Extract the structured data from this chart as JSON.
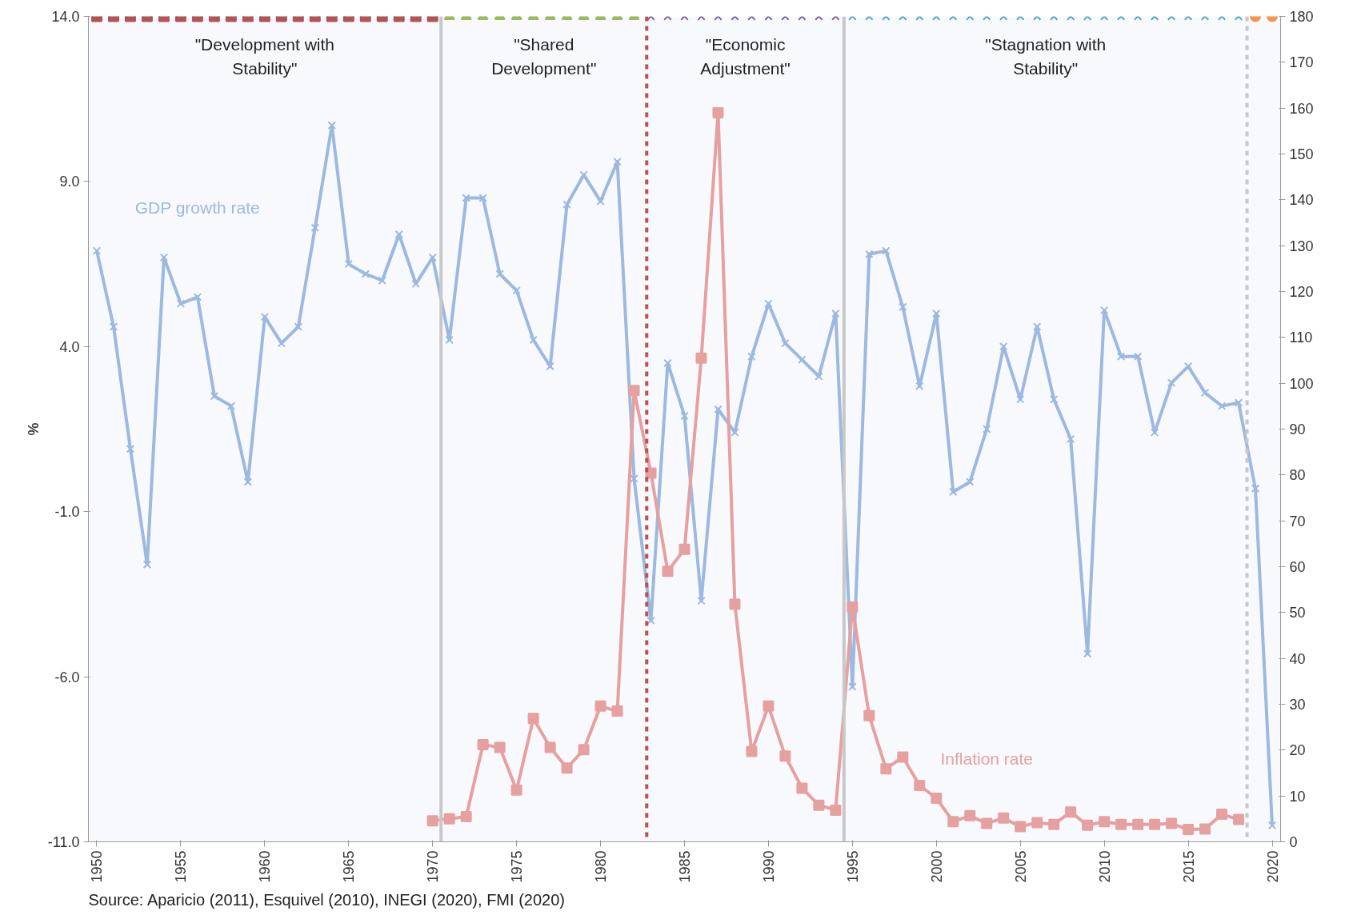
{
  "chart_data": {
    "type": "line",
    "ylabel": "%",
    "xlim": [
      1949.5,
      2020.5
    ],
    "ylim": [
      -11,
      14
    ],
    "y2lim": [
      0,
      180
    ],
    "xticks": [
      1950,
      1955,
      1960,
      1965,
      1970,
      1975,
      1980,
      1985,
      1990,
      1995,
      2000,
      2005,
      2010,
      2015,
      2020
    ],
    "yticks": [
      {
        "value": -11,
        "label": "-11.0"
      },
      {
        "value": -6,
        "label": "-6.0"
      },
      {
        "value": -1,
        "label": "-1.0"
      },
      {
        "value": 4,
        "label": "4.0"
      },
      {
        "value": 9,
        "label": "9.0"
      },
      {
        "value": 14,
        "label": "14.0"
      }
    ],
    "y2ticks": [
      0,
      10,
      20,
      30,
      40,
      50,
      60,
      70,
      80,
      90,
      100,
      110,
      120,
      130,
      140,
      150,
      160,
      170,
      180
    ],
    "grid": false,
    "series": [
      {
        "name": "GDP growth rate",
        "marker": "cross",
        "color": "#9db9e0",
        "x": [
          1950,
          1951,
          1952,
          1953,
          1954,
          1955,
          1956,
          1957,
          1958,
          1959,
          1960,
          1961,
          1962,
          1963,
          1964,
          1965,
          1966,
          1967,
          1968,
          1969,
          1970,
          1971,
          1972,
          1973,
          1974,
          1975,
          1976,
          1977,
          1978,
          1979,
          1980,
          1981,
          1982,
          1983,
          1984,
          1985,
          1986,
          1987,
          1988,
          1989,
          1990,
          1991,
          1992,
          1993,
          1994,
          1995,
          1996,
          1997,
          1998,
          1999,
          2000,
          2001,
          2002,
          2003,
          2004,
          2005,
          2006,
          2007,
          2008,
          2009,
          2010,
          2011,
          2012,
          2013,
          2014,
          2015,
          2016,
          2017,
          2018,
          2019,
          2020
        ],
        "values": [
          6.9,
          4.6,
          0.9,
          -2.6,
          6.7,
          5.3,
          5.5,
          2.5,
          2.2,
          -0.1,
          4.9,
          4.1,
          4.6,
          7.6,
          10.7,
          6.5,
          6.2,
          6.0,
          7.4,
          5.9,
          6.7,
          4.2,
          8.5,
          8.5,
          6.2,
          5.7,
          4.2,
          3.4,
          8.3,
          9.2,
          8.4,
          9.6,
          0.0,
          -4.3,
          3.5,
          1.9,
          -3.7,
          2.1,
          1.4,
          3.7,
          5.3,
          4.1,
          3.6,
          3.1,
          5.0,
          -6.3,
          6.8,
          6.9,
          5.2,
          2.8,
          5.0,
          -0.4,
          -0.1,
          1.5,
          4.0,
          2.4,
          4.6,
          2.4,
          1.2,
          -5.3,
          5.1,
          3.7,
          3.7,
          1.4,
          2.9,
          3.4,
          2.6,
          2.2,
          2.3,
          -0.3,
          -10.5
        ]
      },
      {
        "name": "Inflation rate",
        "marker": "square",
        "axis": "y2",
        "color": "#e6a0a0",
        "x": [
          1970,
          1971,
          1972,
          1973,
          1974,
          1975,
          1976,
          1977,
          1978,
          1979,
          1980,
          1981,
          1982,
          1983,
          1984,
          1985,
          1986,
          1987,
          1988,
          1989,
          1990,
          1991,
          1992,
          1993,
          1994,
          1995,
          1996,
          1997,
          1998,
          1999,
          2000,
          2001,
          2002,
          2003,
          2004,
          2005,
          2006,
          2007,
          2008,
          2009,
          2010,
          2011,
          2012,
          2013,
          2014,
          2015,
          2016,
          2017,
          2018
        ],
        "values": [
          4.6,
          5.0,
          5.5,
          21.2,
          20.6,
          11.3,
          26.9,
          20.6,
          16.1,
          20.1,
          29.6,
          28.5,
          98.4,
          80.4,
          59.0,
          63.8,
          105.5,
          159.0,
          51.8,
          19.7,
          29.6,
          18.7,
          11.7,
          8.0,
          6.9,
          51.2,
          27.5,
          15.9,
          18.5,
          12.3,
          9.5,
          4.4,
          5.7,
          4.0,
          5.2,
          3.3,
          4.2,
          3.8,
          6.5,
          3.6,
          4.4,
          3.8,
          3.8,
          3.8,
          4.0,
          2.7,
          2.8,
          6.0,
          4.9
        ]
      },
      {
        "type": "scatter",
        "marker": "square",
        "axis": "y2",
        "color": "#b05454",
        "x": [
          1950,
          1951,
          1952,
          1953,
          1954,
          1955,
          1956,
          1957,
          1958,
          1959,
          1960,
          1961,
          1962,
          1963,
          1964,
          1965,
          1966,
          1967,
          1968,
          1969,
          1970
        ],
        "values": [
          180,
          180,
          180,
          180,
          180,
          180,
          180,
          180,
          180,
          180,
          180,
          180,
          180,
          180,
          180,
          180,
          180,
          180,
          180,
          180,
          180
        ]
      },
      {
        "type": "scatter",
        "marker": "triangle",
        "axis": "y2",
        "color": "#9bbb59",
        "x": [
          1971,
          1972,
          1973,
          1974,
          1975,
          1976,
          1977,
          1978,
          1979,
          1980,
          1981,
          1982
        ],
        "values": [
          180,
          180,
          180,
          180,
          180,
          180,
          180,
          180,
          180,
          180,
          180,
          180
        ]
      },
      {
        "type": "scatter",
        "marker": "cross",
        "axis": "y2",
        "color": "#8064a2",
        "x": [
          1983,
          1984,
          1985,
          1986,
          1987,
          1988,
          1989,
          1990,
          1991,
          1992,
          1993,
          1994
        ],
        "values": [
          180,
          180,
          180,
          180,
          180,
          180,
          180,
          180,
          180,
          180,
          180,
          180
        ]
      },
      {
        "type": "scatter",
        "marker": "cross",
        "axis": "y2",
        "color": "#4bacc6",
        "x": [
          1995,
          1996,
          1997,
          1998,
          1999,
          2000,
          2001,
          2002,
          2003,
          2004,
          2005,
          2006,
          2007,
          2008,
          2009,
          2010,
          2011,
          2012,
          2013,
          2014,
          2015,
          2016,
          2017,
          2018
        ],
        "values": [
          180,
          180,
          180,
          180,
          180,
          180,
          180,
          180,
          180,
          180,
          180,
          180,
          180,
          180,
          180,
          180,
          180,
          180,
          180,
          180,
          180,
          180,
          180,
          180
        ]
      },
      {
        "type": "scatter",
        "marker": "circle",
        "axis": "y2",
        "color": "#f79646",
        "x": [
          2019,
          2020
        ],
        "values": [
          180,
          180
        ]
      }
    ],
    "ref_lines": [
      {
        "axis": "x",
        "value": 1970.5,
        "color": "#c8c8c8",
        "line_style": "solid"
      },
      {
        "axis": "x",
        "value": 1982.75,
        "color": "#c0504d",
        "line_style": "dashed"
      },
      {
        "axis": "x",
        "value": 1994.5,
        "color": "#c8c8c8",
        "line_style": "solid"
      },
      {
        "axis": "x",
        "value": 2018.5,
        "color": "#c8c8c8",
        "line_style": "dashed"
      }
    ],
    "annotations": [
      "\"Development with\nStability\"",
      "\"Shared\nDevelopment\"",
      "\"Economic\nAdjustment\"",
      "\"Stagnation with\nStability\"",
      "Source: Aparicio (2011), Esquivel (2010), INEGI (2020), FMI (2020)"
    ]
  }
}
